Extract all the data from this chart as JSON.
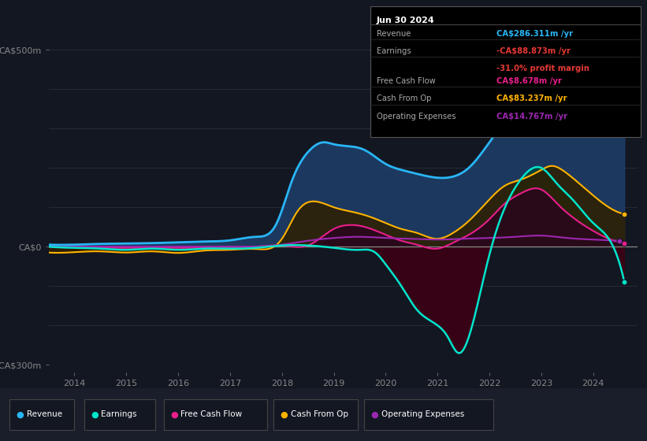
{
  "bg_color": "#131722",
  "plot_bg_color": "#131722",
  "grid_color": "#2a2e39",
  "zero_line_color": "#888888",
  "ylim": [
    -320,
    520
  ],
  "xlim": [
    2013.5,
    2024.85
  ],
  "xtick_years": [
    2014,
    2015,
    2016,
    2017,
    2018,
    2019,
    2020,
    2021,
    2022,
    2023,
    2024
  ],
  "series": {
    "Revenue": {
      "color": "#29b6f6",
      "fill_above": "#1a3a5c",
      "fill_below": "#1a2a3c",
      "lw": 2.0
    },
    "Earnings": {
      "color": "#00e5cc",
      "fill_above": "#004433",
      "fill_below": "#3a0010",
      "lw": 1.8
    },
    "Free Cash Flow": {
      "color": "#e91e8c",
      "fill_above": "#330022",
      "fill_below": "#330022",
      "lw": 1.5
    },
    "Cash From Op": {
      "color": "#ffb300",
      "fill_above": "#332200",
      "fill_below": "#332200",
      "lw": 1.5
    },
    "Operating Expenses": {
      "color": "#9c27b0",
      "fill_above": "#220033",
      "fill_below": "#220033",
      "lw": 1.5
    }
  },
  "legend": [
    {
      "label": "Revenue",
      "color": "#29b6f6"
    },
    {
      "label": "Earnings",
      "color": "#00e5cc"
    },
    {
      "label": "Free Cash Flow",
      "color": "#e91e8c"
    },
    {
      "label": "Cash From Op",
      "color": "#ffb300"
    },
    {
      "label": "Operating Expenses",
      "color": "#9c27b0"
    }
  ],
  "tooltip": {
    "title": "Jun 30 2024",
    "rows": [
      {
        "label": "Revenue",
        "value": "CA$286.311m /yr",
        "value_color": "#29b6f6"
      },
      {
        "label": "Earnings",
        "value": "-CA$88.873m /yr",
        "value_color": "#e53935"
      },
      {
        "label": "",
        "value": "-31.0% profit margin",
        "value_color": "#e53935"
      },
      {
        "label": "Free Cash Flow",
        "value": "CA$8.678m /yr",
        "value_color": "#e91e8c"
      },
      {
        "label": "Cash From Op",
        "value": "CA$83.237m /yr",
        "value_color": "#ffb300"
      },
      {
        "label": "Operating Expenses",
        "value": "CA$14.767m /yr",
        "value_color": "#9c27b0"
      }
    ]
  },
  "revenue_x": [
    2013.5,
    2014.0,
    2014.5,
    2015.0,
    2015.5,
    2016.0,
    2016.5,
    2017.0,
    2017.5,
    2017.9,
    2018.2,
    2018.5,
    2018.8,
    2019.0,
    2019.3,
    2019.6,
    2020.0,
    2020.3,
    2020.6,
    2021.0,
    2021.3,
    2021.6,
    2022.0,
    2022.3,
    2022.6,
    2023.0,
    2023.2,
    2023.4,
    2023.6,
    2023.8,
    2024.0,
    2024.3,
    2024.6
  ],
  "revenue_y": [
    5,
    5,
    7,
    8,
    9,
    11,
    13,
    16,
    25,
    60,
    170,
    240,
    265,
    260,
    255,
    245,
    210,
    195,
    185,
    175,
    178,
    200,
    265,
    320,
    375,
    430,
    460,
    475,
    455,
    390,
    320,
    295,
    286
  ],
  "earnings_x": [
    2013.5,
    2014.0,
    2014.5,
    2015.0,
    2015.5,
    2016.0,
    2016.5,
    2017.0,
    2017.5,
    2018.0,
    2018.5,
    2019.0,
    2019.5,
    2019.8,
    2020.0,
    2020.3,
    2020.6,
    2021.0,
    2021.2,
    2021.4,
    2021.6,
    2021.8,
    2022.0,
    2022.3,
    2022.6,
    2023.0,
    2023.3,
    2023.6,
    2024.0,
    2024.3,
    2024.6
  ],
  "earnings_y": [
    0,
    -3,
    -5,
    -8,
    -5,
    -8,
    -5,
    -5,
    -3,
    3,
    3,
    -3,
    -8,
    -15,
    -45,
    -100,
    -160,
    -200,
    -230,
    -270,
    -230,
    -130,
    -20,
    100,
    170,
    200,
    160,
    120,
    60,
    20,
    -89
  ],
  "cashfromop_x": [
    2013.5,
    2014.0,
    2014.5,
    2015.0,
    2015.5,
    2016.0,
    2016.5,
    2017.0,
    2017.5,
    2018.0,
    2018.3,
    2018.6,
    2019.0,
    2019.3,
    2019.6,
    2020.0,
    2020.3,
    2020.6,
    2021.0,
    2021.3,
    2021.6,
    2022.0,
    2022.3,
    2022.6,
    2023.0,
    2023.2,
    2023.4,
    2023.6,
    2024.0,
    2024.3,
    2024.6
  ],
  "cashfromop_y": [
    -15,
    -14,
    -12,
    -15,
    -12,
    -16,
    -10,
    -8,
    -6,
    20,
    90,
    115,
    100,
    90,
    80,
    60,
    45,
    35,
    20,
    35,
    65,
    120,
    155,
    170,
    195,
    205,
    195,
    175,
    130,
    100,
    83
  ],
  "cashflow_x": [
    2013.5,
    2014.0,
    2014.5,
    2015.0,
    2015.5,
    2016.0,
    2016.5,
    2017.0,
    2017.5,
    2018.0,
    2018.5,
    2019.0,
    2019.3,
    2019.6,
    2020.0,
    2020.3,
    2020.6,
    2021.0,
    2021.3,
    2021.6,
    2022.0,
    2022.3,
    2022.6,
    2023.0,
    2023.3,
    2023.6,
    2024.0,
    2024.3,
    2024.6
  ],
  "cashflow_y": [
    0,
    -2,
    -2,
    -3,
    -2,
    -3,
    -2,
    -1,
    0,
    3,
    3,
    45,
    55,
    50,
    30,
    15,
    5,
    -5,
    10,
    30,
    70,
    110,
    135,
    145,
    110,
    75,
    40,
    20,
    9
  ],
  "opex_x": [
    2013.5,
    2014.0,
    2015.0,
    2016.0,
    2017.0,
    2018.0,
    2018.5,
    2019.0,
    2019.5,
    2020.0,
    2020.5,
    2021.0,
    2021.5,
    2022.0,
    2022.5,
    2023.0,
    2023.5,
    2024.0,
    2024.5
  ],
  "opex_y": [
    0,
    0,
    0,
    0,
    0,
    5,
    15,
    22,
    25,
    22,
    20,
    18,
    20,
    22,
    25,
    28,
    22,
    18,
    15
  ]
}
